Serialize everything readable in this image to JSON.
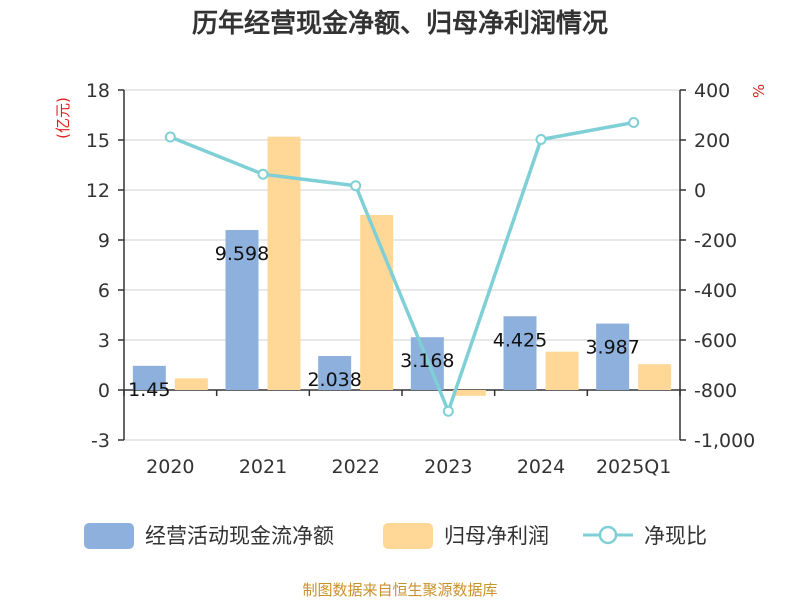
{
  "chart_data": {
    "type": "bar",
    "title": "历年经营现金净额、归母净利润情况",
    "categories": [
      "2020",
      "2021",
      "2022",
      "2023",
      "2024",
      "2025Q1"
    ],
    "left_axis": {
      "unit_label": "(亿元)",
      "ylim": [
        -3,
        18
      ],
      "ticks": [
        -3,
        0,
        3,
        6,
        9,
        12,
        15,
        18
      ]
    },
    "right_axis": {
      "unit_label": "%",
      "ylim": [
        -1000,
        400
      ],
      "ticks": [
        -1000,
        -800,
        -600,
        -400,
        -200,
        0,
        200,
        400
      ],
      "tick_labels": [
        "-1,000",
        "-800",
        "-600",
        "-400",
        "-200",
        "0",
        "200",
        "400"
      ]
    },
    "series": [
      {
        "name": "经营活动现金流净额",
        "kind": "bar",
        "axis": "left",
        "color": "#8eb0dc",
        "values": [
          1.45,
          9.598,
          2.038,
          3.168,
          4.425,
          3.987
        ],
        "labels": [
          "1.45",
          "9.598",
          "2.038",
          "3.168",
          "4.425",
          "3.987"
        ]
      },
      {
        "name": "归母净利润",
        "kind": "bar",
        "axis": "left",
        "color": "#ffd898",
        "values": [
          0.7,
          15.2,
          10.5,
          -0.35,
          2.3,
          1.55
        ]
      },
      {
        "name": "净现比",
        "kind": "line",
        "axis": "right",
        "color": "#7fd0d6",
        "values": [
          212,
          63,
          17,
          -885,
          202,
          270
        ]
      }
    ],
    "grid": true,
    "legend_position": "bottom"
  },
  "source_text": "制图数据来自恒生聚源数据库"
}
